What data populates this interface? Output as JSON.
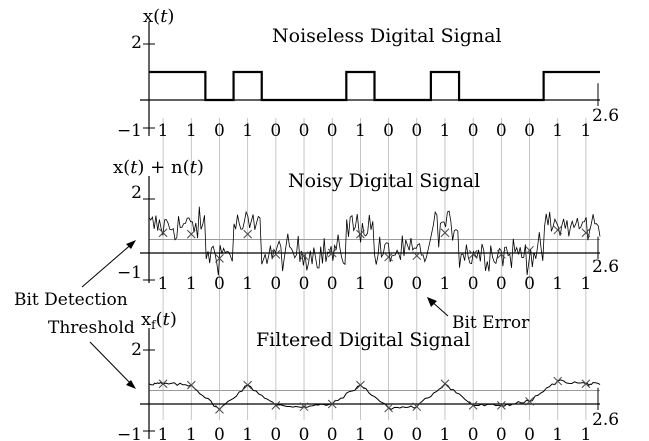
{
  "x_max": "2.6",
  "bits": [
    "1",
    "1",
    "0",
    "1",
    "0",
    "0",
    "0",
    "1",
    "0",
    "0",
    "1",
    "0",
    "0",
    "0",
    "1",
    "1"
  ],
  "panels": [
    {
      "ylabel_parts": [
        "x(",
        "t",
        ")"
      ],
      "title": "Noiseless Digital Signal",
      "tick_top": "2",
      "tick_bottom": "−1"
    },
    {
      "ylabel_parts": [
        "x(",
        "t",
        ") + n(",
        "t",
        ")"
      ],
      "title": "Noisy Digital Signal",
      "tick_top": "2",
      "tick_bottom": "−1"
    },
    {
      "ylabel_parts": [
        "x",
        "f",
        "(",
        "t",
        ")"
      ],
      "title": "Filtered Digital Signal",
      "tick_top": "2",
      "tick_bottom": "−1"
    }
  ],
  "annotations": {
    "threshold_line1": "Bit Detection",
    "threshold_line2": "Threshold",
    "bit_error": "Bit Error"
  },
  "chart_data": {
    "type": "line",
    "x_range": [
      0,
      2.6
    ],
    "y_range": [
      -1,
      2
    ],
    "bit_period": 0.1625,
    "threshold": 0.5,
    "bits": [
      1,
      1,
      0,
      1,
      0,
      0,
      0,
      1,
      0,
      0,
      1,
      0,
      0,
      0,
      1,
      1
    ],
    "filtered_samples": [
      0.75,
      0.7,
      -0.2,
      0.7,
      -0.05,
      -0.1,
      0.0,
      0.7,
      -0.15,
      -0.1,
      0.75,
      -0.05,
      -0.05,
      0.1,
      0.85,
      0.75
    ]
  }
}
